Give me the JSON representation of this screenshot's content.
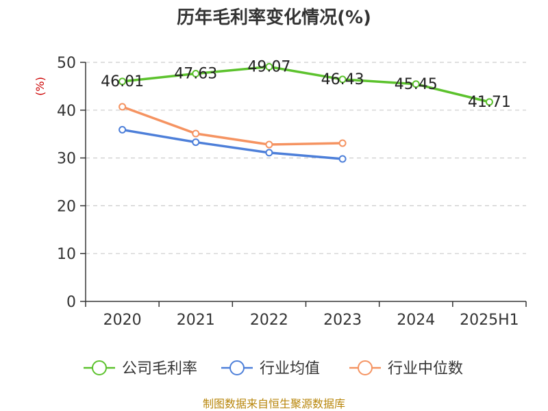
{
  "chart_data": {
    "type": "line",
    "title": "历年毛利率变化情况(%)",
    "ylabel": "(%)",
    "xlabel": "",
    "categories": [
      "2020",
      "2021",
      "2022",
      "2023",
      "2024",
      "2025H1"
    ],
    "ylim": [
      0,
      50
    ],
    "yticks": [
      0,
      10,
      20,
      30,
      40,
      50
    ],
    "grid": true,
    "legend_position": "bottom",
    "series": [
      {
        "name": "公司毛利率",
        "color": "#5cc22d",
        "values": [
          46.01,
          47.63,
          49.07,
          46.43,
          45.45,
          41.71
        ],
        "labels": [
          "46.01",
          "47.63",
          "49.07",
          "46.43",
          "45.45",
          "41.71"
        ]
      },
      {
        "name": "行业均值",
        "color": "#4d7fd9",
        "values": [
          35.9,
          33.3,
          31.1,
          29.8,
          null,
          null
        ]
      },
      {
        "name": "行业中位数",
        "color": "#f59361",
        "values": [
          40.7,
          35.1,
          32.8,
          33.1,
          null,
          null
        ]
      }
    ]
  },
  "source": "制图数据来自恒生聚源数据库"
}
